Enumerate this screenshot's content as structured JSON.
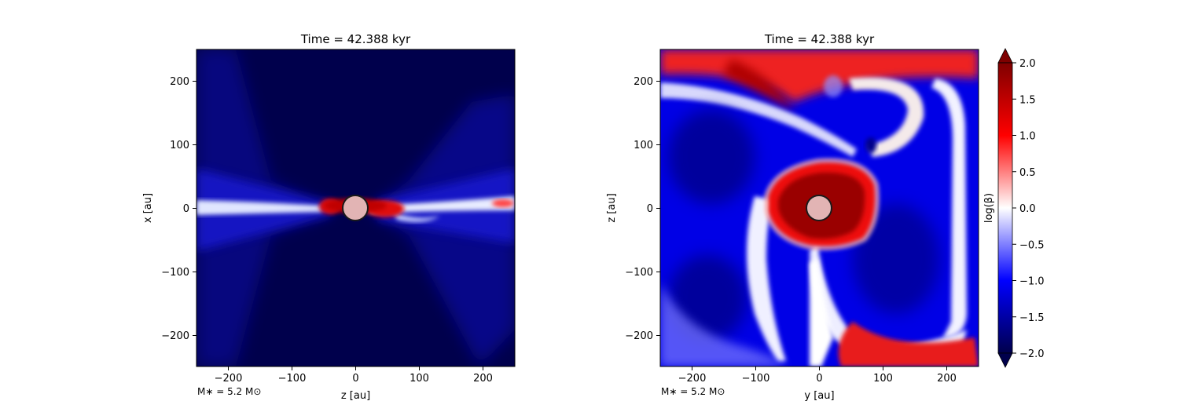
{
  "chart_data": [
    {
      "type": "heatmap",
      "title": "Time = 42.388 kyr",
      "xlabel": "z [au]",
      "ylabel": "x [au]",
      "xlim": [
        -250,
        250
      ],
      "ylim": [
        -250,
        250
      ],
      "xticks": [
        -200,
        -100,
        0,
        100,
        200
      ],
      "yticks": [
        -200,
        -100,
        0,
        100,
        200
      ],
      "xtick_labels": [
        "−200",
        "−100",
        "0",
        "100",
        "200"
      ],
      "ytick_labels": [
        "−200",
        "−100",
        "0",
        "100",
        "200"
      ],
      "annotation": "M∗ = 5.2 M⊙",
      "description_values": {
        "sink_center": [
          0,
          0
        ],
        "sink_radius": 20
      }
    },
    {
      "type": "heatmap",
      "title": "Time = 42.388 kyr",
      "xlabel": "y [au]",
      "ylabel": "z [au]",
      "xlim": [
        -250,
        250
      ],
      "ylim": [
        -250,
        250
      ],
      "xticks": [
        -200,
        -100,
        0,
        100,
        200
      ],
      "yticks": [
        -200,
        -100,
        0,
        100,
        200
      ],
      "xtick_labels": [
        "−200",
        "−100",
        "0",
        "100",
        "200"
      ],
      "ytick_labels": [
        "−200",
        "−100",
        "0",
        "100",
        "200"
      ],
      "annotation": "M∗ = 5.2 M⊙",
      "description_values": {
        "sink_center": [
          0,
          0
        ],
        "sink_radius": 20
      }
    }
  ],
  "colorbar": {
    "label": "log(β)",
    "range": [
      -2.0,
      2.0
    ],
    "ticks": [
      2.0,
      1.5,
      1.0,
      0.5,
      0.0,
      -0.5,
      -1.0,
      -1.5,
      -2.0
    ],
    "tick_labels": [
      "2.0",
      "1.5",
      "1.0",
      "0.5",
      "0.0",
      "−0.5",
      "−1.0",
      "−1.5",
      "−2.0"
    ],
    "colormap": "seismic",
    "colors": {
      "low": "#00004c",
      "mid_low": "#0000ff",
      "mid": "#ffffff",
      "mid_high": "#ff0000",
      "high": "#7f0000"
    }
  }
}
